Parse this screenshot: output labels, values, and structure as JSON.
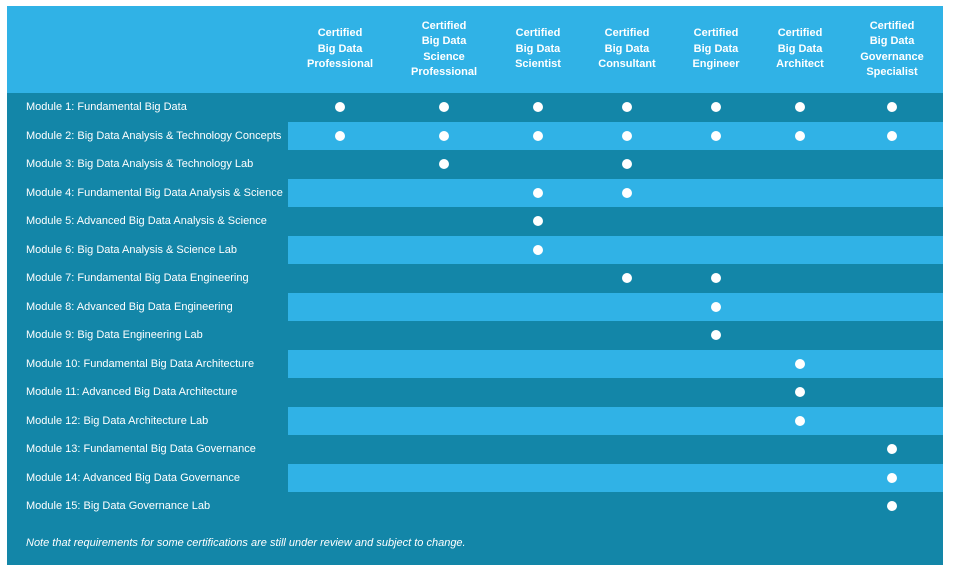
{
  "colors": {
    "dark": "#1386a8",
    "light": "#30b2e6",
    "text": "#ffffff"
  },
  "certifications": [
    {
      "label": "Certified\nBig Data\nProfessional"
    },
    {
      "label": "Certified\nBig Data\nScience\nProfessional"
    },
    {
      "label": "Certified\nBig Data\nScientist"
    },
    {
      "label": "Certified\nBig Data\nConsultant"
    },
    {
      "label": "Certified\nBig Data\nEngineer"
    },
    {
      "label": "Certified\nBig Data\nArchitect"
    },
    {
      "label": "Certified\nBig Data\nGovernance\nSpecialist"
    }
  ],
  "modules": [
    {
      "name": "Module 1: Fundamental Big Data",
      "required": [
        true,
        true,
        true,
        true,
        true,
        true,
        true
      ]
    },
    {
      "name": "Module 2: Big Data Analysis & Technology Concepts",
      "required": [
        true,
        true,
        true,
        true,
        true,
        true,
        true
      ]
    },
    {
      "name": "Module 3: Big Data Analysis & Technology Lab",
      "required": [
        false,
        true,
        false,
        true,
        false,
        false,
        false
      ]
    },
    {
      "name": "Module 4: Fundamental Big Data Analysis & Science",
      "required": [
        false,
        false,
        true,
        true,
        false,
        false,
        false
      ]
    },
    {
      "name": "Module 5: Advanced Big Data Analysis & Science",
      "required": [
        false,
        false,
        true,
        false,
        false,
        false,
        false
      ]
    },
    {
      "name": "Module 6: Big Data Analysis & Science Lab",
      "required": [
        false,
        false,
        true,
        false,
        false,
        false,
        false
      ]
    },
    {
      "name": "Module 7: Fundamental Big Data Engineering",
      "required": [
        false,
        false,
        false,
        true,
        true,
        false,
        false
      ]
    },
    {
      "name": "Module 8: Advanced Big Data Engineering",
      "required": [
        false,
        false,
        false,
        false,
        true,
        false,
        false
      ]
    },
    {
      "name": "Module 9: Big Data Engineering Lab",
      "required": [
        false,
        false,
        false,
        false,
        true,
        false,
        false
      ]
    },
    {
      "name": "Module 10: Fundamental Big Data Architecture",
      "required": [
        false,
        false,
        false,
        false,
        false,
        true,
        false
      ]
    },
    {
      "name": "Module 11: Advanced Big Data Architecture",
      "required": [
        false,
        false,
        false,
        false,
        false,
        true,
        false
      ]
    },
    {
      "name": "Module 12: Big Data Architecture Lab",
      "required": [
        false,
        false,
        false,
        false,
        false,
        true,
        false
      ]
    },
    {
      "name": "Module 13: Fundamental Big Data Governance",
      "required": [
        false,
        false,
        false,
        false,
        false,
        false,
        true
      ]
    },
    {
      "name": "Module 14: Advanced Big Data Governance",
      "required": [
        false,
        false,
        false,
        false,
        false,
        false,
        true
      ]
    },
    {
      "name": "Module 15: Big Data Governance Lab",
      "required": [
        false,
        false,
        false,
        false,
        false,
        false,
        true
      ]
    }
  ],
  "footer": {
    "note": "Note that requirements for some certifications are still under review and subject to change."
  }
}
